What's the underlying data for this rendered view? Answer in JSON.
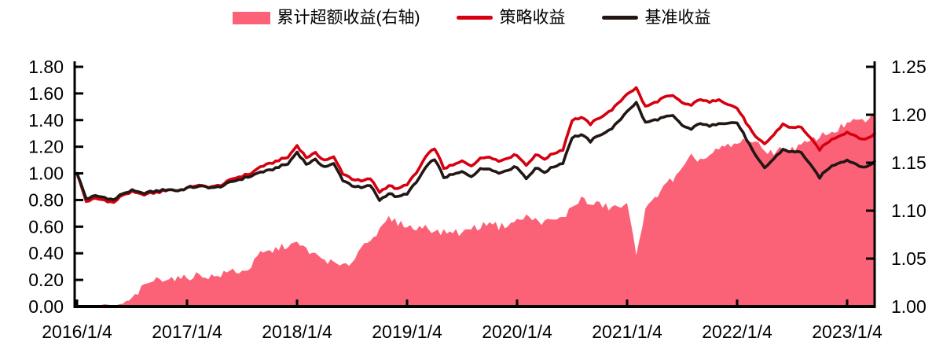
{
  "legend": [
    {
      "label": "累计超额收益(右轴)",
      "type": "area",
      "color": "#FC6277"
    },
    {
      "label": "策略收益",
      "type": "line",
      "color": "#D60010"
    },
    {
      "label": "基准收益",
      "type": "line",
      "color": "#221714"
    }
  ],
  "chart_data": {
    "type": "area+line",
    "title": "",
    "xlabel": "",
    "ylabel_left": "",
    "ylabel_right": "",
    "grid": false,
    "legend_position": "top-center",
    "x_start": "2016/1",
    "x_end": "2023/4",
    "x_frequency": "monthly",
    "axes": {
      "left": {
        "labels": [
          "0.00",
          "0.20",
          "0.40",
          "0.60",
          "0.80",
          "1.00",
          "1.20",
          "1.40",
          "1.60",
          "1.80"
        ],
        "range": [
          0.0,
          1.8
        ]
      },
      "right": {
        "labels": [
          "1.00",
          "1.05",
          "1.10",
          "1.15",
          "1.20",
          "1.25"
        ],
        "range": [
          1.0,
          1.25
        ]
      },
      "x": {
        "labels": [
          "2016/1/4",
          "2017/1/4",
          "2018/1/4",
          "2019/1/4",
          "2020/1/4",
          "2021/1/4",
          "2022/1/4",
          "2023/1/4"
        ]
      }
    },
    "series": [
      {
        "name": "累计超额收益(右轴)",
        "type": "area",
        "axis": "right",
        "color": "#FC6277",
        "values": [
          1.0,
          1.0,
          1.001,
          1.002,
          1.001,
          1.003,
          1.008,
          1.018,
          1.026,
          1.029,
          1.03,
          1.029,
          1.03,
          1.033,
          1.032,
          1.031,
          1.034,
          1.038,
          1.036,
          1.042,
          1.055,
          1.057,
          1.061,
          1.064,
          1.065,
          1.06,
          1.053,
          1.049,
          1.045,
          1.041,
          1.047,
          1.062,
          1.072,
          1.078,
          1.092,
          1.087,
          1.085,
          1.08,
          1.085,
          1.078,
          1.077,
          1.079,
          1.076,
          1.083,
          1.082,
          1.09,
          1.083,
          1.086,
          1.089,
          1.094,
          1.09,
          1.088,
          1.09,
          1.092,
          1.104,
          1.113,
          1.106,
          1.107,
          1.103,
          1.104,
          1.105,
          1.057,
          1.1,
          1.112,
          1.128,
          1.132,
          1.142,
          1.156,
          1.153,
          1.157,
          1.164,
          1.167,
          1.169,
          1.175,
          1.17,
          1.163,
          1.161,
          1.165,
          1.164,
          1.168,
          1.172,
          1.178,
          1.181,
          1.185,
          1.191,
          1.193,
          1.194,
          1.198
        ]
      },
      {
        "name": "策略收益",
        "type": "line",
        "axis": "left",
        "color": "#D60010",
        "values": [
          1.0,
          0.79,
          0.81,
          0.8,
          0.78,
          0.84,
          0.86,
          0.84,
          0.85,
          0.86,
          0.88,
          0.87,
          0.89,
          0.91,
          0.9,
          0.9,
          0.92,
          0.96,
          0.98,
          1.0,
          1.05,
          1.07,
          1.1,
          1.12,
          1.21,
          1.12,
          1.15,
          1.1,
          1.12,
          1.0,
          0.96,
          0.94,
          0.96,
          0.86,
          0.91,
          0.88,
          0.92,
          1.0,
          1.12,
          1.19,
          1.04,
          1.06,
          1.09,
          1.06,
          1.11,
          1.13,
          1.09,
          1.12,
          1.14,
          1.06,
          1.14,
          1.11,
          1.15,
          1.18,
          1.4,
          1.42,
          1.37,
          1.42,
          1.46,
          1.52,
          1.6,
          1.64,
          1.5,
          1.53,
          1.57,
          1.58,
          1.53,
          1.51,
          1.56,
          1.53,
          1.56,
          1.52,
          1.49,
          1.38,
          1.27,
          1.22,
          1.29,
          1.37,
          1.34,
          1.35,
          1.26,
          1.18,
          1.24,
          1.28,
          1.31,
          1.28,
          1.25,
          1.3
        ]
      },
      {
        "name": "基准收益",
        "type": "line",
        "axis": "left",
        "color": "#221714",
        "values": [
          1.0,
          0.81,
          0.83,
          0.82,
          0.8,
          0.85,
          0.87,
          0.85,
          0.86,
          0.87,
          0.88,
          0.87,
          0.89,
          0.9,
          0.9,
          0.89,
          0.91,
          0.94,
          0.96,
          0.98,
          1.01,
          1.02,
          1.05,
          1.07,
          1.16,
          1.07,
          1.1,
          1.05,
          1.07,
          0.95,
          0.91,
          0.89,
          0.91,
          0.8,
          0.85,
          0.82,
          0.85,
          0.93,
          1.04,
          1.11,
          0.97,
          0.99,
          1.01,
          0.98,
          1.03,
          1.04,
          1.0,
          1.03,
          1.05,
          0.96,
          1.04,
          1.01,
          1.05,
          1.08,
          1.27,
          1.29,
          1.24,
          1.29,
          1.32,
          1.38,
          1.47,
          1.53,
          1.38,
          1.4,
          1.42,
          1.43,
          1.36,
          1.33,
          1.38,
          1.35,
          1.38,
          1.38,
          1.38,
          1.26,
          1.13,
          1.04,
          1.11,
          1.18,
          1.16,
          1.16,
          1.06,
          0.97,
          1.04,
          1.08,
          1.1,
          1.07,
          1.04,
          1.09
        ]
      }
    ]
  },
  "style": {
    "axis_color": "#000000",
    "tick_label_color": "#000000",
    "background": "#ffffff"
  }
}
